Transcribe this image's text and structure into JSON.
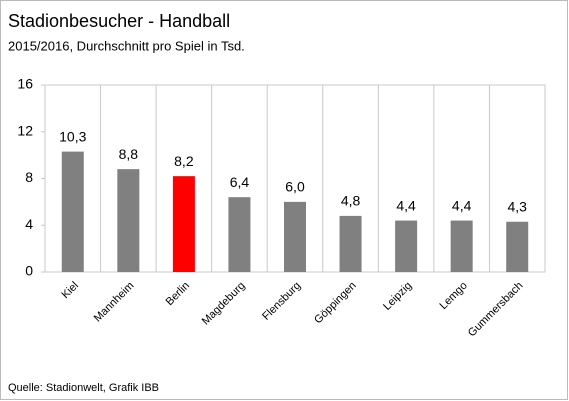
{
  "chart_data": {
    "type": "bar",
    "title": "Stadionbesucher - Handball",
    "subtitle": "2015/2016, Durchschnitt pro Spiel in Tsd.",
    "categories": [
      "Kiel",
      "Mannheim",
      "Berlin",
      "Magdeburg",
      "Flensburg",
      "Göppingen",
      "Leipzig",
      "Lemgo",
      "Gummersbach"
    ],
    "values": [
      10.3,
      8.8,
      8.2,
      6.4,
      6.0,
      4.8,
      4.4,
      4.4,
      4.3
    ],
    "value_labels": [
      "10,3",
      "8,8",
      "8,2",
      "6,4",
      "6,0",
      "4,8",
      "4,4",
      "4,4",
      "4,3"
    ],
    "colors": [
      "#808080",
      "#808080",
      "#ff0000",
      "#808080",
      "#808080",
      "#808080",
      "#808080",
      "#808080",
      "#808080"
    ],
    "ylim": [
      0,
      16
    ],
    "yticks": [
      0,
      4,
      8,
      12,
      16
    ],
    "grid": false,
    "source": "Quelle: Stadionwelt, Grafik IBB"
  }
}
